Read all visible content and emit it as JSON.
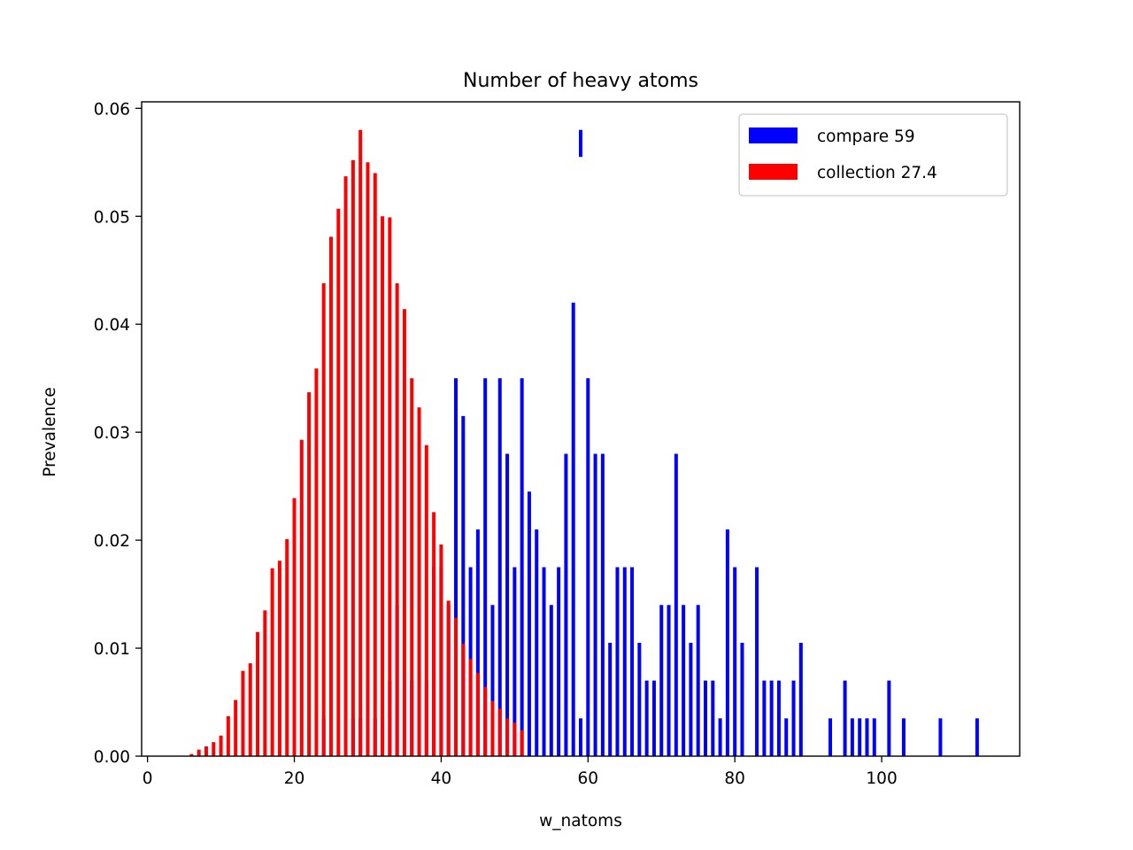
{
  "chart_data": {
    "type": "bar",
    "title": "Number of heavy atoms",
    "xlabel": "w_natoms",
    "ylabel": "Prevalence",
    "xlim": [
      -0.8,
      118.8
    ],
    "ylim": [
      0,
      0.0606
    ],
    "xticks": [
      0,
      20,
      40,
      60,
      80,
      100
    ],
    "yticks": [
      0.0,
      0.01,
      0.02,
      0.03,
      0.04,
      0.05,
      0.06
    ],
    "xtick_labels": [
      "0",
      "20",
      "40",
      "60",
      "80",
      "100"
    ],
    "ytick_labels": [
      "0.00",
      "0.01",
      "0.02",
      "0.03",
      "0.04",
      "0.05",
      "0.06"
    ],
    "grid": false,
    "legend_position": "top-right",
    "series": [
      {
        "name": "compare 59",
        "color": "#0000ff",
        "points": [
          [
            24,
            0.0035
          ],
          [
            28,
            0.0035
          ],
          [
            29,
            0.0035
          ],
          [
            30,
            0.007
          ],
          [
            31,
            0.0035
          ],
          [
            32,
            0.0035
          ],
          [
            33,
            0.007
          ],
          [
            34,
            0.014
          ],
          [
            36,
            0.007
          ],
          [
            37,
            0.014
          ],
          [
            38,
            0.007
          ],
          [
            39,
            0.0175
          ],
          [
            40,
            0.0175
          ],
          [
            41,
            0.014
          ],
          [
            42,
            0.035
          ],
          [
            43,
            0.0315
          ],
          [
            44,
            0.0175
          ],
          [
            45,
            0.021
          ],
          [
            46,
            0.035
          ],
          [
            47,
            0.014
          ],
          [
            48,
            0.035
          ],
          [
            49,
            0.028
          ],
          [
            50,
            0.0175
          ],
          [
            51,
            0.035
          ],
          [
            52,
            0.0245
          ],
          [
            53,
            0.021
          ],
          [
            54,
            0.0175
          ],
          [
            55,
            0.014
          ],
          [
            56,
            0.0175
          ],
          [
            57,
            0.028
          ],
          [
            58,
            0.042
          ],
          [
            59,
            0.0035
          ],
          [
            60,
            0.035
          ],
          [
            61,
            0.028
          ],
          [
            62,
            0.028
          ],
          [
            63,
            0.0105
          ],
          [
            64,
            0.0175
          ],
          [
            65,
            0.0175
          ],
          [
            66,
            0.0175
          ],
          [
            67,
            0.0105
          ],
          [
            68,
            0.007
          ],
          [
            69,
            0.007
          ],
          [
            70,
            0.014
          ],
          [
            71,
            0.014
          ],
          [
            72,
            0.028
          ],
          [
            73,
            0.014
          ],
          [
            74,
            0.0105
          ],
          [
            75,
            0.014
          ],
          [
            76,
            0.007
          ],
          [
            77,
            0.007
          ],
          [
            78,
            0.0035
          ],
          [
            79,
            0.021
          ],
          [
            80,
            0.0175
          ],
          [
            81,
            0.0105
          ],
          [
            83,
            0.0175
          ],
          [
            84,
            0.007
          ],
          [
            85,
            0.007
          ],
          [
            86,
            0.007
          ],
          [
            87,
            0.0035
          ],
          [
            88,
            0.007
          ],
          [
            89,
            0.0105
          ],
          [
            93,
            0.0035
          ],
          [
            95,
            0.007
          ],
          [
            96,
            0.0035
          ],
          [
            97,
            0.0035
          ],
          [
            98,
            0.0035
          ],
          [
            99,
            0.0035
          ],
          [
            101,
            0.007
          ],
          [
            103,
            0.0035
          ],
          [
            108,
            0.0035
          ],
          [
            113,
            0.0035
          ]
        ]
      },
      {
        "name": "collection 27.4",
        "color": "#ff0000",
        "points": [
          [
            6,
            0.0002
          ],
          [
            7,
            0.0006
          ],
          [
            8,
            0.0009
          ],
          [
            9,
            0.0013
          ],
          [
            10,
            0.0019
          ],
          [
            11,
            0.0037
          ],
          [
            12,
            0.0052
          ],
          [
            13,
            0.0079
          ],
          [
            14,
            0.0086
          ],
          [
            15,
            0.0115
          ],
          [
            16,
            0.0135
          ],
          [
            17,
            0.0174
          ],
          [
            18,
            0.0181
          ],
          [
            19,
            0.0201
          ],
          [
            20,
            0.0239
          ],
          [
            21,
            0.0293
          ],
          [
            22,
            0.0337
          ],
          [
            23,
            0.0359
          ],
          [
            24,
            0.0438
          ],
          [
            25,
            0.0481
          ],
          [
            26,
            0.0507
          ],
          [
            27,
            0.0537
          ],
          [
            28,
            0.0552
          ],
          [
            29,
            0.058
          ],
          [
            30,
            0.055
          ],
          [
            31,
            0.054
          ],
          [
            32,
            0.05
          ],
          [
            33,
            0.0499
          ],
          [
            34,
            0.0438
          ],
          [
            35,
            0.0414
          ],
          [
            36,
            0.035
          ],
          [
            37,
            0.0323
          ],
          [
            38,
            0.0288
          ],
          [
            39,
            0.0226
          ],
          [
            40,
            0.0196
          ],
          [
            41,
            0.0144
          ],
          [
            42,
            0.0128
          ],
          [
            43,
            0.0104
          ],
          [
            44,
            0.009
          ],
          [
            45,
            0.0077
          ],
          [
            46,
            0.0064
          ],
          [
            47,
            0.0051
          ],
          [
            48,
            0.0044
          ],
          [
            49,
            0.0035
          ],
          [
            50,
            0.0031
          ],
          [
            51,
            0.0024
          ]
        ]
      }
    ],
    "outlier_marks": [
      {
        "series": 0,
        "x": 59,
        "y_from": 0.0555,
        "y_to": 0.058
      }
    ]
  }
}
